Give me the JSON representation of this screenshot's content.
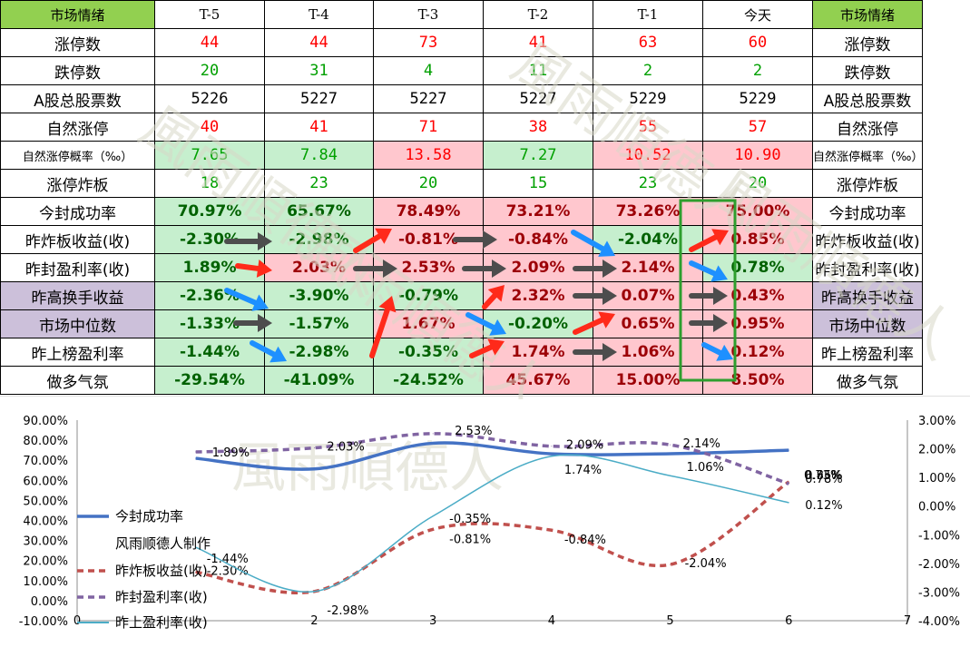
{
  "table": {
    "columns": [
      "市场情绪",
      "T-5",
      "T-4",
      "T-3",
      "T-2",
      "T-1",
      "今天",
      "市场情绪"
    ],
    "rows": [
      {
        "label": "涨停数",
        "values": [
          "44",
          "44",
          "73",
          "41",
          "63",
          "60"
        ],
        "styles": [
          "red",
          "red",
          "red",
          "red",
          "red",
          "red"
        ]
      },
      {
        "label": "跌停数",
        "values": [
          "20",
          "31",
          "4",
          "11",
          "2",
          "2"
        ],
        "styles": [
          "green",
          "green",
          "green",
          "green",
          "green",
          "green"
        ]
      },
      {
        "label": "A股总股票数",
        "values": [
          "5226",
          "5227",
          "5227",
          "5227",
          "5229",
          "5229"
        ],
        "styles": [
          "black",
          "black",
          "black",
          "black",
          "black",
          "black"
        ]
      },
      {
        "label": "自然涨停",
        "values": [
          "40",
          "41",
          "71",
          "38",
          "55",
          "57"
        ],
        "styles": [
          "red",
          "red",
          "red",
          "red",
          "red",
          "red"
        ]
      },
      {
        "label": "自然涨停概率（‰）",
        "values": [
          "7.65",
          "7.84",
          "13.58",
          "7.27",
          "10.52",
          "10.90"
        ],
        "styles": [
          "g",
          "g",
          "r",
          "g",
          "r",
          "r"
        ]
      },
      {
        "label": "涨停炸板",
        "values": [
          "18",
          "23",
          "20",
          "15",
          "23",
          "20"
        ],
        "styles": [
          "green",
          "green",
          "green",
          "green",
          "green",
          "green"
        ]
      },
      {
        "label": "今封成功率",
        "values": [
          "70.97%",
          "65.67%",
          "78.49%",
          "73.21%",
          "73.26%",
          "75.00%"
        ],
        "styles": [
          "g",
          "g",
          "r",
          "r",
          "r",
          "r"
        ]
      },
      {
        "label": "昨炸板收益(收)",
        "values": [
          "-2.30%",
          "-2.98%",
          "-0.81%",
          "-0.84%",
          "-2.04%",
          "0.85%"
        ],
        "styles": [
          "g",
          "g",
          "r",
          "r",
          "g",
          "r"
        ]
      },
      {
        "label": "昨封盈利率(收)",
        "values": [
          "1.89%",
          "2.03%",
          "2.53%",
          "2.09%",
          "2.14%",
          "0.78%"
        ],
        "styles": [
          "g",
          "r",
          "r",
          "r",
          "r",
          "g"
        ]
      },
      {
        "label": "昨高换手收益",
        "values": [
          "-2.36%",
          "-3.90%",
          "-0.79%",
          "2.32%",
          "0.07%",
          "0.43%"
        ],
        "styles": [
          "g",
          "g",
          "g",
          "r",
          "r",
          "r"
        ]
      },
      {
        "label": "市场中位数",
        "values": [
          "-1.33%",
          "-1.57%",
          "1.67%",
          "-0.20%",
          "0.65%",
          "0.95%"
        ],
        "styles": [
          "g",
          "g",
          "r",
          "g",
          "r",
          "r"
        ]
      },
      {
        "label": "昨上榜盈利率",
        "values": [
          "-1.44%",
          "-2.98%",
          "-0.35%",
          "1.74%",
          "1.06%",
          "0.12%"
        ],
        "styles": [
          "g",
          "g",
          "g",
          "r",
          "r",
          "r"
        ]
      },
      {
        "label": "做多气氛",
        "values": [
          "-29.54%",
          "-41.09%",
          "-24.52%",
          "45.67%",
          "15.00%",
          "8.50%"
        ],
        "styles": [
          "g",
          "g",
          "g",
          "r",
          "r",
          "r"
        ]
      }
    ]
  },
  "colors": {
    "header_green": "#92d050",
    "purple": "#ccc0da",
    "pos_bg": "#ffc7ce",
    "neg_bg": "#c6efce",
    "arrow_red": "#ff2a1a",
    "arrow_blue": "#1e90ff",
    "arrow_dark": "#4d4d4d",
    "box": "#2e9e2e"
  },
  "watermark": "風雨順德人",
  "chart_data": {
    "type": "line",
    "x": [
      1,
      2,
      3,
      4,
      5,
      6
    ],
    "left_axis": {
      "ticks": [
        "90.00%",
        "80.00%",
        "70.00%",
        "60.00%",
        "50.00%",
        "40.00%",
        "30.00%",
        "20.00%",
        "10.00%",
        "0.00%",
        "-10.00%"
      ],
      "ylim": [
        -10,
        90
      ]
    },
    "right_axis": {
      "ticks": [
        "3.00%",
        "2.00%",
        "1.00%",
        "0.00%",
        "-1.00%",
        "-2.00%",
        "-3.00%",
        "-4.00%"
      ],
      "ylim": [
        -4,
        3
      ]
    },
    "x_axis": {
      "ticks": [
        "0",
        "2",
        "3",
        "4",
        "5",
        "6",
        "7"
      ],
      "xlim": [
        0,
        7
      ]
    },
    "series": [
      {
        "name": "今封成功率",
        "axis": "left",
        "color": "#4472c4",
        "dash": "",
        "values": [
          70.97,
          65.67,
          78.49,
          73.21,
          73.26,
          75.0
        ],
        "labels": []
      },
      {
        "name": "昨炸板收益(收)",
        "axis": "right",
        "color": "#c0504d",
        "dash": "7,5",
        "values": [
          -2.3,
          -2.98,
          -0.81,
          -0.84,
          -2.04,
          0.85
        ],
        "labels": [
          "-2.30%",
          "-2.98%",
          "-0.81%",
          "-0.84%",
          "-2.04%",
          "0.85%"
        ]
      },
      {
        "name": "昨封盈利率(收)",
        "axis": "right",
        "color": "#8064a2",
        "dash": "7,5",
        "values": [
          1.89,
          2.03,
          2.53,
          2.09,
          2.14,
          0.78
        ],
        "labels": [
          "1.89%",
          "2.03%",
          "2.53%",
          "2.09%",
          "2.14%",
          "0.78%"
        ]
      },
      {
        "name": "昨上盈利率(收)",
        "axis": "right",
        "color": "#4bacc6",
        "dash": "",
        "values": [
          -1.44,
          -2.98,
          -0.35,
          1.74,
          1.06,
          0.12
        ],
        "labels": [
          "-1.44%",
          "",
          "-0.35%",
          "1.74%",
          "1.06%",
          "0.12%"
        ]
      }
    ],
    "extra_labels": [
      "0.73%"
    ],
    "legend_note": "风雨顺德人制作"
  }
}
